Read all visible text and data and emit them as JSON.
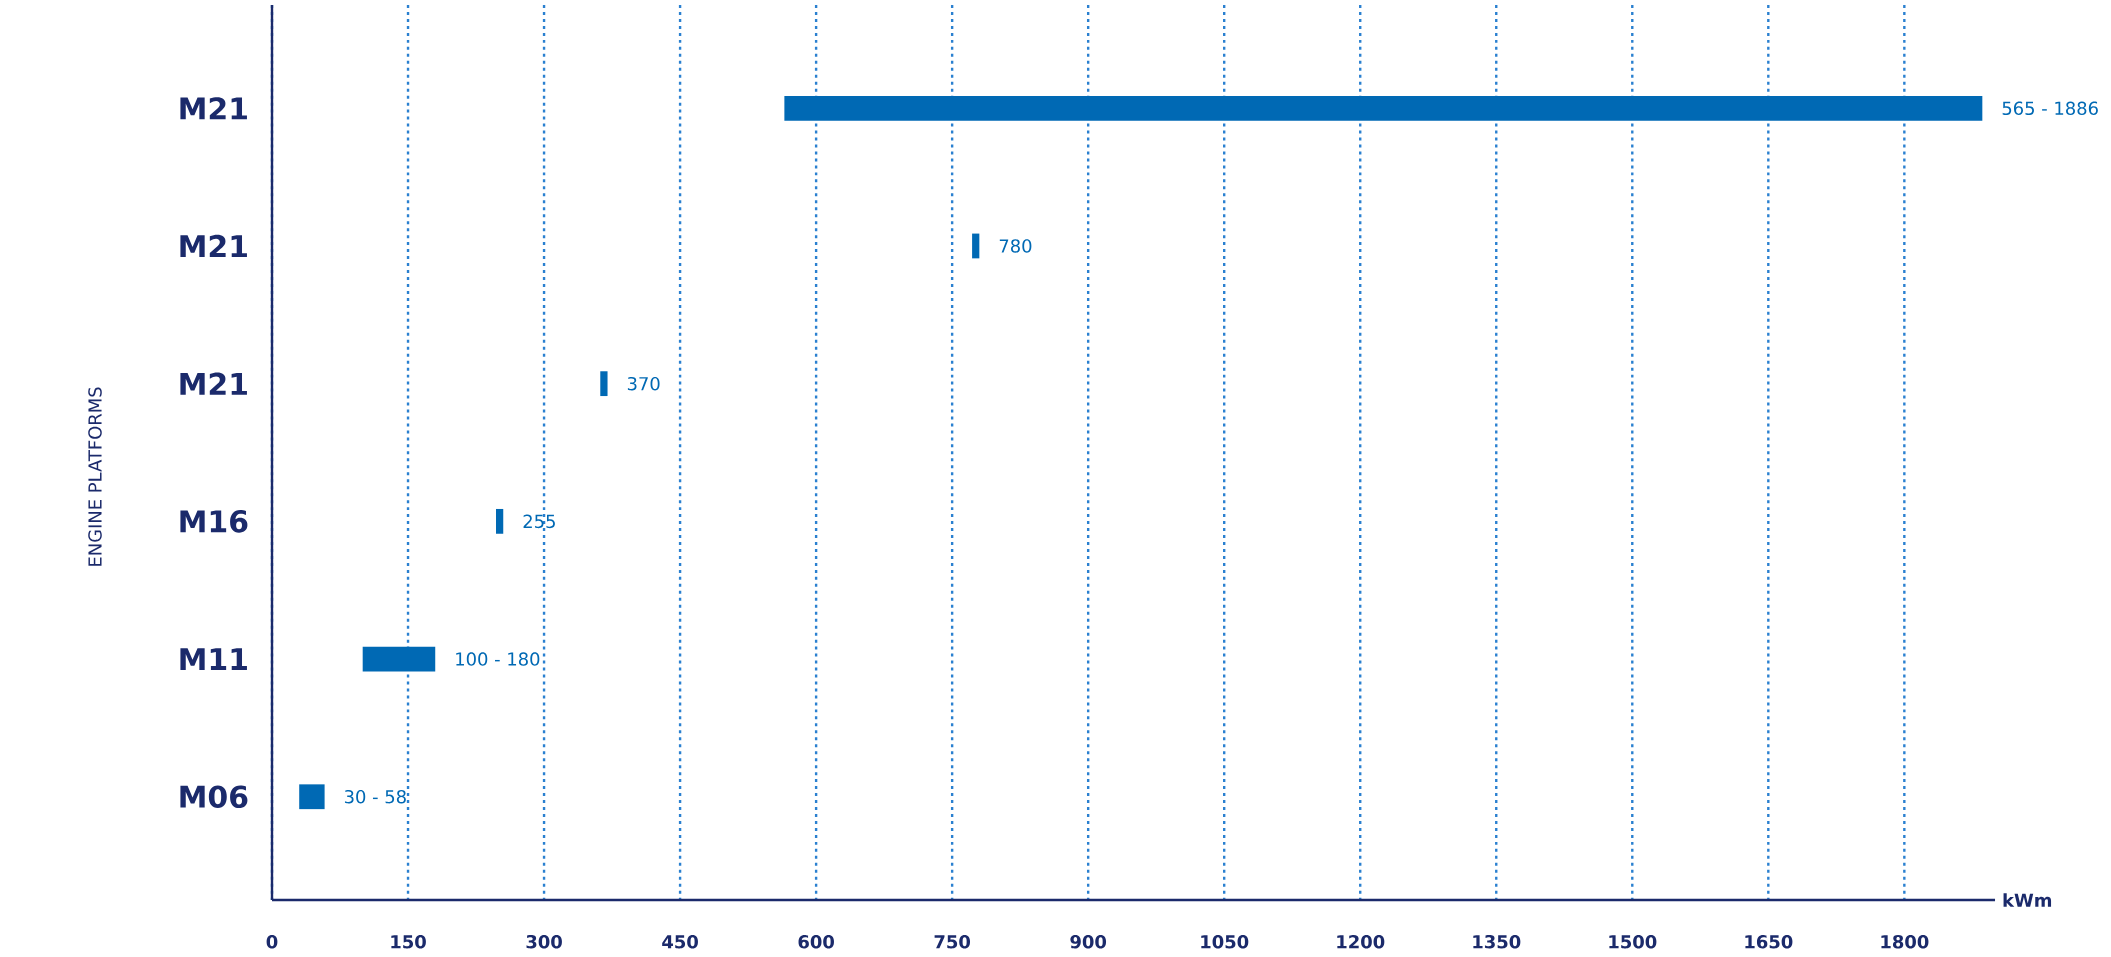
{
  "chart_data": {
    "type": "bar",
    "orientation": "horizontal",
    "ylabel": "ENGINE PLATFORMS",
    "xlabel": "kWm",
    "categories": [
      "M21",
      "M21",
      "M21",
      "M16",
      "M11",
      "M06"
    ],
    "base": [
      565,
      772,
      362,
      247,
      100,
      30
    ],
    "values": [
      1321,
      8,
      8,
      8,
      80,
      28
    ],
    "color": "#0069b4",
    "xlim": [
      0,
      1900
    ],
    "xticks": [
      0,
      150,
      300,
      450,
      600,
      750,
      900,
      1050,
      1200,
      1350,
      1500,
      1650,
      1800
    ],
    "grid": "x",
    "annotations": [
      "565 - 1886",
      "780",
      "370",
      "255",
      "100 - 180",
      "30 - 58"
    ]
  }
}
